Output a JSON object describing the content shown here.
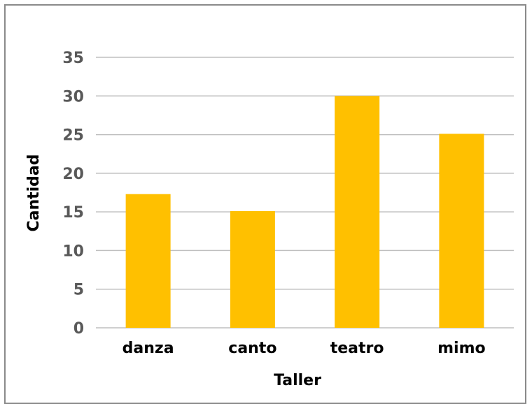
{
  "chart_data": {
    "type": "bar",
    "categories": [
      "danza",
      "canto",
      "teatro",
      "mimo"
    ],
    "values": [
      17.3,
      15.1,
      30.0,
      25.1
    ],
    "xlabel": "Taller",
    "ylabel": "Cantidad",
    "ylim": [
      0,
      35
    ],
    "yticks": [
      "0",
      "5",
      "10",
      "15",
      "20",
      "25",
      "30",
      "35"
    ],
    "grid": true,
    "legend": "none",
    "colors": {
      "bar": "#FFC000",
      "grid": "#BFBFBF",
      "tick_text": "#595959"
    }
  }
}
